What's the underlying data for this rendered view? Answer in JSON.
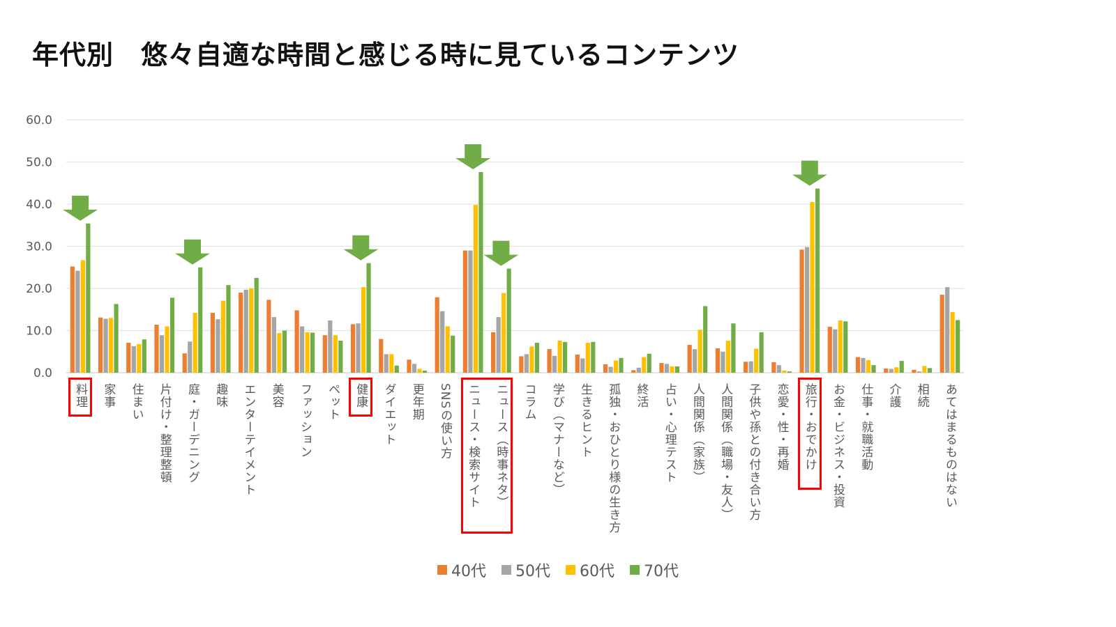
{
  "title": "年代別　悠々自適な時間と感じる時に見ているコンテンツ",
  "chart_data": {
    "type": "bar",
    "title": "年代別　悠々自適な時間と感じる時に見ているコンテンツ",
    "xlabel": "",
    "ylabel": "",
    "ylim": [
      0,
      60
    ],
    "yticks": [
      "0.0",
      "10.0",
      "20.0",
      "30.0",
      "40.0",
      "50.0",
      "60.0"
    ],
    "grid": true,
    "legend_position": "bottom",
    "categories": [
      "料理",
      "家事",
      "住まい",
      "片付け・整理整頓",
      "庭・ガーデニング",
      "趣味",
      "エンターテイメント",
      "美容",
      "ファッション",
      "ペット",
      "健康",
      "ダイエット",
      "更年期",
      "SNSの使い方",
      "ニュース・検索サイト",
      "ニュース（時事ネタ）",
      "コラム",
      "学び（マナーなど）",
      "生きるヒント",
      "孤独・おひとり様の生き方",
      "終活",
      "占い・心理テスト",
      "人間関係（家族）",
      "人間関係（職場・友人）",
      "子供や孫との付き合い方",
      "恋愛・性・再婚",
      "旅行・おでかけ",
      "お金・ビジネス・投資",
      "仕事・就職活動",
      "介護",
      "相続",
      "あてはまるものはない"
    ],
    "series": [
      {
        "name": "40代",
        "color": "#ED7D31",
        "values": [
          25.2,
          13.1,
          7.1,
          11.4,
          4.6,
          14.2,
          19.0,
          17.3,
          14.8,
          8.9,
          11.5,
          8.0,
          3.1,
          17.9,
          29.0,
          9.6,
          3.9,
          5.6,
          4.3,
          2.0,
          0.6,
          2.3,
          6.6,
          5.8,
          2.6,
          2.5,
          29.2,
          10.9,
          3.7,
          1.0,
          0.7,
          18.5
        ]
      },
      {
        "name": "50代",
        "color": "#A5A5A5",
        "values": [
          24.2,
          12.8,
          6.3,
          8.9,
          7.4,
          12.7,
          19.7,
          13.2,
          11.0,
          12.4,
          11.7,
          4.4,
          2.1,
          14.6,
          29.0,
          13.2,
          4.4,
          4.0,
          3.4,
          1.4,
          1.2,
          2.1,
          5.6,
          5.0,
          2.7,
          1.8,
          29.8,
          10.3,
          3.5,
          0.9,
          0.3,
          20.3
        ]
      },
      {
        "name": "60代",
        "color": "#FFC000",
        "values": [
          26.7,
          13.0,
          6.8,
          11.0,
          14.2,
          17.1,
          20.0,
          9.4,
          9.6,
          8.9,
          20.3,
          4.4,
          0.9,
          11.0,
          39.8,
          18.9,
          6.2,
          7.6,
          7.1,
          2.9,
          3.7,
          1.5,
          10.2,
          7.6,
          5.7,
          0.5,
          40.5,
          12.4,
          3.0,
          1.3,
          1.6,
          14.4
        ]
      },
      {
        "name": "70代",
        "color": "#70AD47",
        "values": [
          35.4,
          16.3,
          7.9,
          17.8,
          25.0,
          20.8,
          22.5,
          10.0,
          9.5,
          7.6,
          26.0,
          1.7,
          0.5,
          8.8,
          47.6,
          24.7,
          7.1,
          7.3,
          7.3,
          3.5,
          4.5,
          1.5,
          15.8,
          11.7,
          9.6,
          0.3,
          43.7,
          12.2,
          1.8,
          2.8,
          1.1,
          12.5
        ]
      }
    ],
    "annotations": {
      "arrow_categories": [
        0,
        4,
        10,
        14,
        15,
        26
      ],
      "highlight_box_groups": [
        [
          0
        ],
        [
          10
        ],
        [
          14,
          15
        ],
        [
          26
        ]
      ],
      "arrow_color": "#70AD47",
      "box_color": "#FF0000"
    }
  }
}
